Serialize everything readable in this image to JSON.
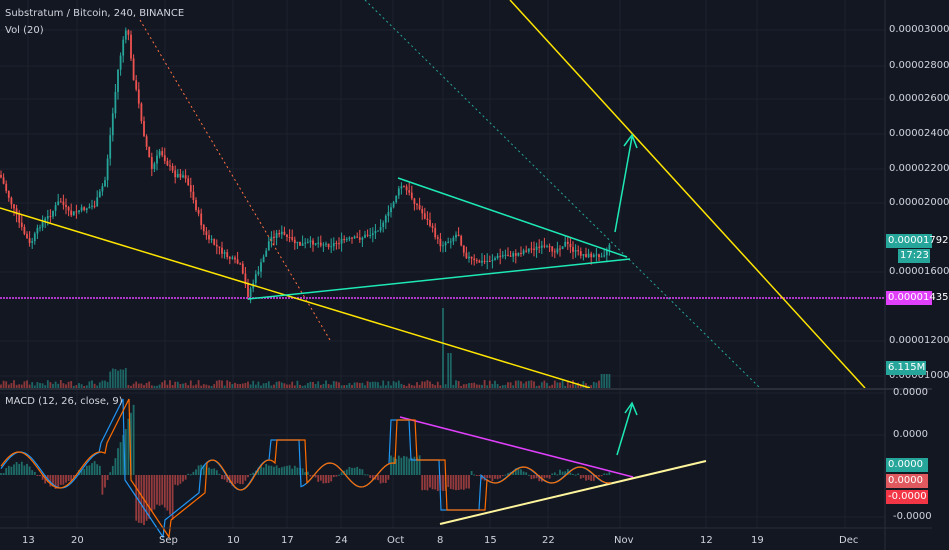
{
  "chart_title": "Substratum / Bitcoin, 240, BINANCE",
  "volume_label": "Vol (20)",
  "macd_label": "MACD (12, 26, close, 9)",
  "price_axis_ticks": [
    "0.00003000",
    "0.00002800",
    "0.00002600",
    "0.00002400",
    "0.00002200",
    "0.00002000",
    "0.00001600",
    "0.00001200",
    "0.00001000"
  ],
  "price_badges": {
    "current_price": {
      "text": "0.00001792",
      "color": "#26a69a"
    },
    "countdown": {
      "text": "17:23",
      "color": "#26a69a"
    },
    "horizontal_line": {
      "text": "0.00001435",
      "color": "#e040fb"
    },
    "volume": {
      "text": "6.115M",
      "color": "#26a69a"
    }
  },
  "macd_axis_ticks": [
    "0.0000",
    "0.0000",
    "-0.0000"
  ],
  "macd_badges": [
    {
      "text": "0.0000",
      "color": "#26a69a"
    },
    {
      "text": "0.0000",
      "color": "#e0595e"
    },
    {
      "text": "-0.0000",
      "color": "#f23645"
    }
  ],
  "time_axis_ticks": [
    "13",
    "20",
    "Sep",
    "10",
    "17",
    "24",
    "Oct",
    "8",
    "15",
    "22",
    "Nov",
    "12",
    "19",
    "Dec"
  ],
  "colors": {
    "background": "#131722",
    "grid": "#1e222d",
    "up": "#26a69a",
    "down": "#ef5350",
    "trendline_yellow": "#ffe500",
    "triangle_cyan": "#1de9b6",
    "horizontal_magenta": "#e040fb",
    "macd_line": "#2196f3",
    "signal_line": "#ff6d00"
  }
}
